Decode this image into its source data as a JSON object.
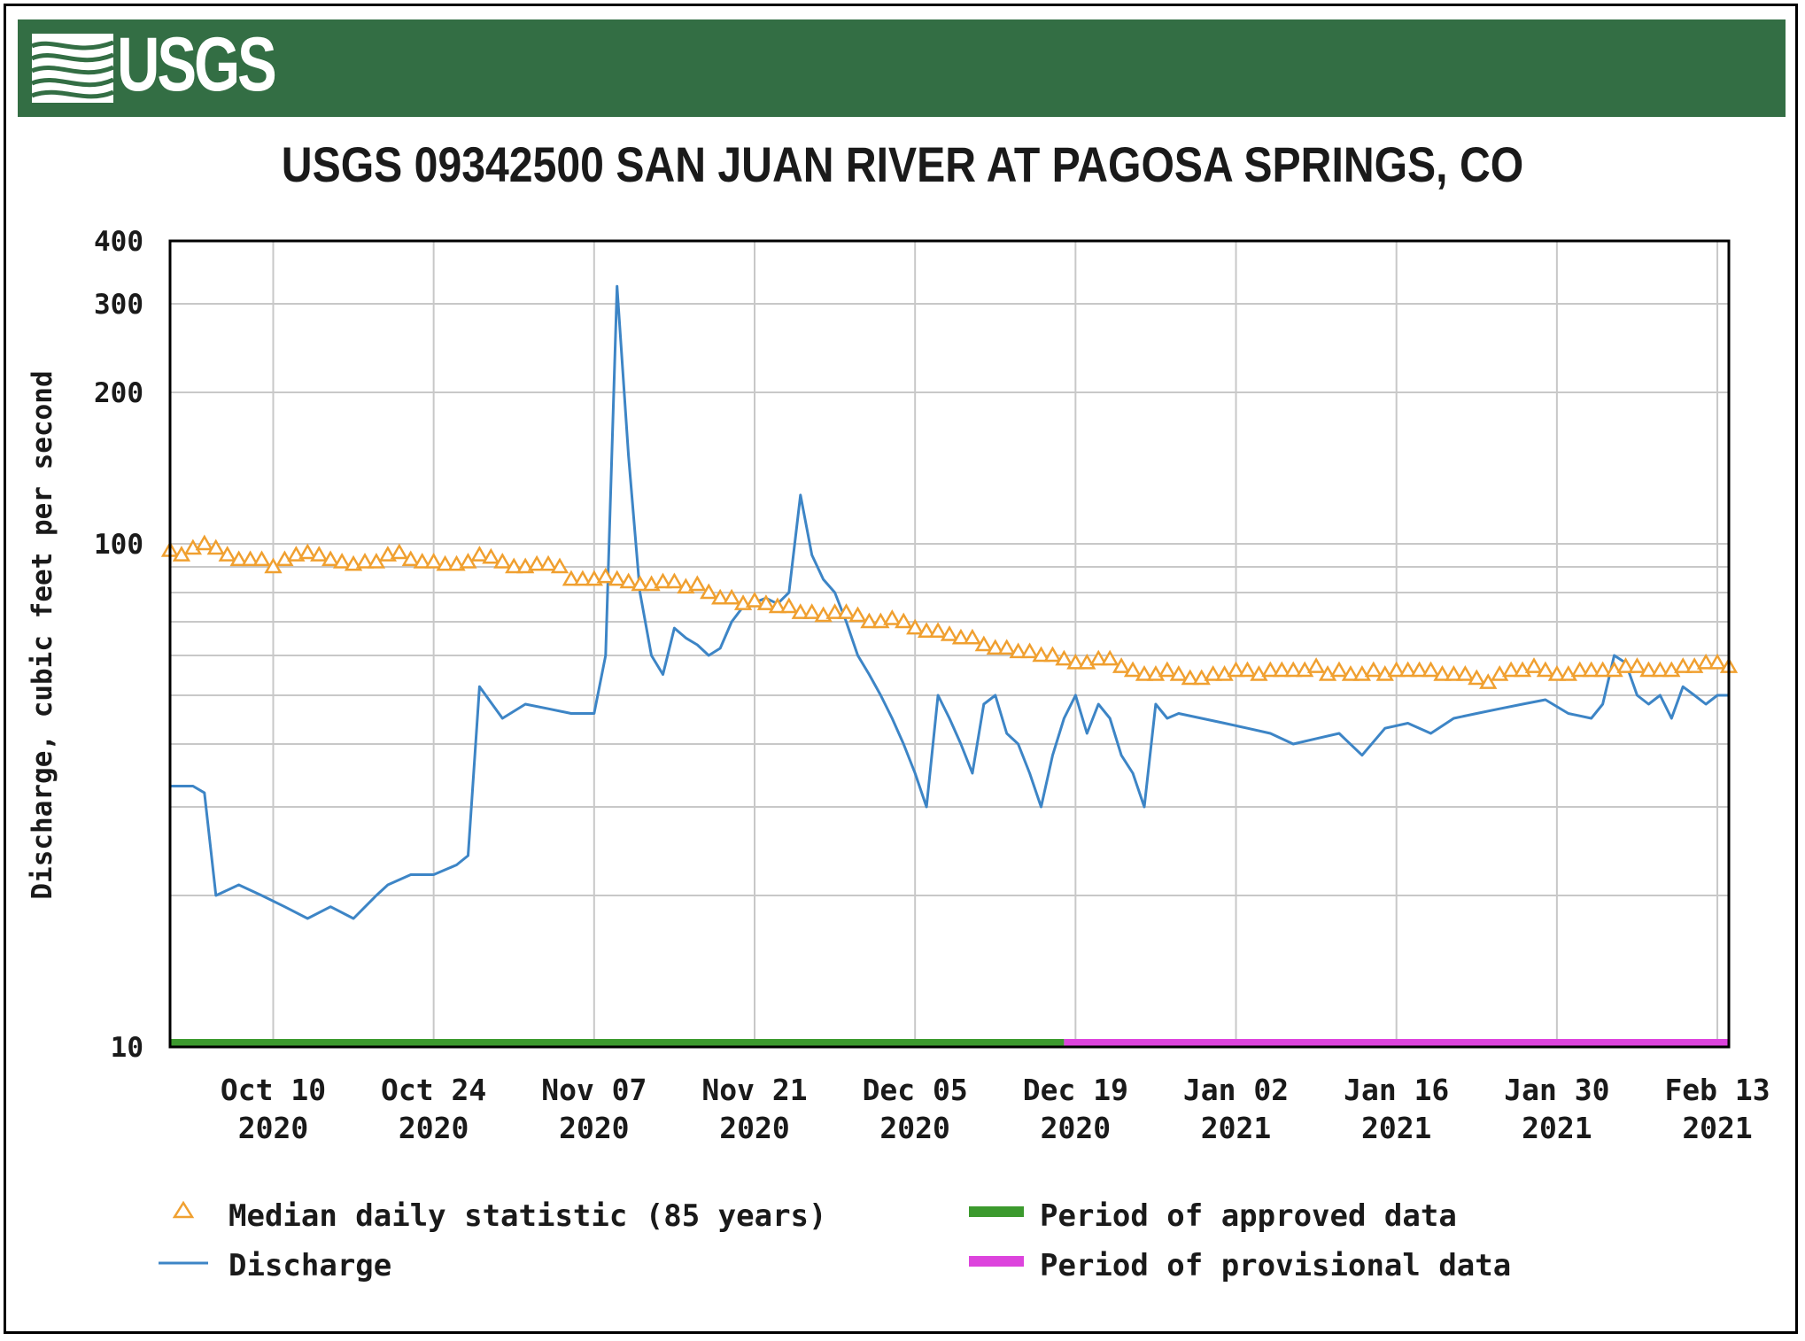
{
  "header": {
    "logo_text": "USGS"
  },
  "chart_data": {
    "type": "line",
    "title": "USGS 09342500 SAN JUAN RIVER AT PAGOSA SPRINGS, CO",
    "ylabel": "Discharge, cubic feet per second",
    "xlabel": "",
    "yscale": "log",
    "ylim": [
      10,
      400
    ],
    "xlim": [
      "2020-10-01",
      "2021-02-14"
    ],
    "grid": true,
    "y_ticks": [
      {
        "value": 10,
        "label": "10"
      },
      {
        "value": 100,
        "label": "100"
      },
      {
        "value": 200,
        "label": "200"
      },
      {
        "value": 300,
        "label": "300"
      },
      {
        "value": 400,
        "label": "400"
      }
    ],
    "x_ticks": [
      {
        "date": "2020-10-10",
        "line1": "Oct 10",
        "line2": "2020"
      },
      {
        "date": "2020-10-24",
        "line1": "Oct 24",
        "line2": "2020"
      },
      {
        "date": "2020-11-07",
        "line1": "Nov 07",
        "line2": "2020"
      },
      {
        "date": "2020-11-21",
        "line1": "Nov 21",
        "line2": "2020"
      },
      {
        "date": "2020-12-05",
        "line1": "Dec 05",
        "line2": "2020"
      },
      {
        "date": "2020-12-19",
        "line1": "Dec 19",
        "line2": "2020"
      },
      {
        "date": "2021-01-02",
        "line1": "Jan 02",
        "line2": "2021"
      },
      {
        "date": "2021-01-16",
        "line1": "Jan 16",
        "line2": "2021"
      },
      {
        "date": "2021-01-30",
        "line1": "Jan 30",
        "line2": "2021"
      },
      {
        "date": "2021-02-13",
        "line1": "Feb 13",
        "line2": "2021"
      }
    ],
    "series": [
      {
        "name": "Discharge",
        "color": "#3d85c6",
        "style": "line",
        "x": [
          "2020-10-01",
          "2020-10-03",
          "2020-10-04",
          "2020-10-05",
          "2020-10-07",
          "2020-10-09",
          "2020-10-11",
          "2020-10-13",
          "2020-10-15",
          "2020-10-17",
          "2020-10-19",
          "2020-10-20",
          "2020-10-22",
          "2020-10-24",
          "2020-10-26",
          "2020-10-27",
          "2020-10-28",
          "2020-10-30",
          "2020-11-01",
          "2020-11-03",
          "2020-11-05",
          "2020-11-07",
          "2020-11-08",
          "2020-11-09",
          "2020-11-10",
          "2020-11-11",
          "2020-11-12",
          "2020-11-13",
          "2020-11-14",
          "2020-11-15",
          "2020-11-16",
          "2020-11-17",
          "2020-11-18",
          "2020-11-19",
          "2020-11-20",
          "2020-11-22",
          "2020-11-23",
          "2020-11-24",
          "2020-11-25",
          "2020-11-26",
          "2020-11-27",
          "2020-11-28",
          "2020-11-29",
          "2020-11-30",
          "2020-12-01",
          "2020-12-02",
          "2020-12-03",
          "2020-12-04",
          "2020-12-05",
          "2020-12-06",
          "2020-12-07",
          "2020-12-08",
          "2020-12-09",
          "2020-12-10",
          "2020-12-11",
          "2020-12-12",
          "2020-12-13",
          "2020-12-14",
          "2020-12-15",
          "2020-12-16",
          "2020-12-17",
          "2020-12-18",
          "2020-12-19",
          "2020-12-20",
          "2020-12-21",
          "2020-12-22",
          "2020-12-23",
          "2020-12-24",
          "2020-12-25",
          "2020-12-26",
          "2020-12-27",
          "2020-12-28",
          "2020-12-30",
          "2021-01-01",
          "2021-01-03",
          "2021-01-05",
          "2021-01-07",
          "2021-01-09",
          "2021-01-11",
          "2021-01-13",
          "2021-01-15",
          "2021-01-17",
          "2021-01-19",
          "2021-01-21",
          "2021-01-23",
          "2021-01-25",
          "2021-01-27",
          "2021-01-29",
          "2021-01-31",
          "2021-02-02",
          "2021-02-03",
          "2021-02-04",
          "2021-02-05",
          "2021-02-06",
          "2021-02-07",
          "2021-02-08",
          "2021-02-09",
          "2021-02-10",
          "2021-02-11",
          "2021-02-12",
          "2021-02-13",
          "2021-02-14"
        ],
        "values": [
          33,
          33,
          32,
          20,
          21,
          20,
          19,
          18,
          19,
          18,
          20,
          21,
          22,
          22,
          23,
          24,
          52,
          45,
          48,
          47,
          46,
          46,
          60,
          325,
          150,
          80,
          60,
          55,
          68,
          65,
          63,
          60,
          62,
          70,
          75,
          78,
          76,
          80,
          125,
          95,
          85,
          80,
          70,
          60,
          55,
          50,
          45,
          40,
          35,
          30,
          50,
          45,
          40,
          35,
          48,
          50,
          42,
          40,
          35,
          30,
          38,
          45,
          50,
          42,
          48,
          45,
          38,
          35,
          30,
          48,
          45,
          46,
          45,
          44,
          43,
          42,
          40,
          41,
          42,
          38,
          43,
          44,
          42,
          45,
          46,
          47,
          48,
          49,
          46,
          45,
          48,
          60,
          58,
          50,
          48,
          50,
          45,
          52,
          50,
          48,
          50,
          50
        ]
      },
      {
        "name": "Median daily statistic (85 years)",
        "color": "#f0a030",
        "style": "triangles",
        "x": [
          "2020-10-01",
          "2020-10-02",
          "2020-10-03",
          "2020-10-04",
          "2020-10-05",
          "2020-10-06",
          "2020-10-07",
          "2020-10-08",
          "2020-10-09",
          "2020-10-10",
          "2020-10-11",
          "2020-10-12",
          "2020-10-13",
          "2020-10-14",
          "2020-10-15",
          "2020-10-16",
          "2020-10-17",
          "2020-10-18",
          "2020-10-19",
          "2020-10-20",
          "2020-10-21",
          "2020-10-22",
          "2020-10-23",
          "2020-10-24",
          "2020-10-25",
          "2020-10-26",
          "2020-10-27",
          "2020-10-28",
          "2020-10-29",
          "2020-10-30",
          "2020-10-31",
          "2020-11-01",
          "2020-11-02",
          "2020-11-03",
          "2020-11-04",
          "2020-11-05",
          "2020-11-06",
          "2020-11-07",
          "2020-11-08",
          "2020-11-09",
          "2020-11-10",
          "2020-11-11",
          "2020-11-12",
          "2020-11-13",
          "2020-11-14",
          "2020-11-15",
          "2020-11-16",
          "2020-11-17",
          "2020-11-18",
          "2020-11-19",
          "2020-11-20",
          "2020-11-21",
          "2020-11-22",
          "2020-11-23",
          "2020-11-24",
          "2020-11-25",
          "2020-11-26",
          "2020-11-27",
          "2020-11-28",
          "2020-11-29",
          "2020-11-30",
          "2020-12-01",
          "2020-12-02",
          "2020-12-03",
          "2020-12-04",
          "2020-12-05",
          "2020-12-06",
          "2020-12-07",
          "2020-12-08",
          "2020-12-09",
          "2020-12-10",
          "2020-12-11",
          "2020-12-12",
          "2020-12-13",
          "2020-12-14",
          "2020-12-15",
          "2020-12-16",
          "2020-12-17",
          "2020-12-18",
          "2020-12-19",
          "2020-12-20",
          "2020-12-21",
          "2020-12-22",
          "2020-12-23",
          "2020-12-24",
          "2020-12-25",
          "2020-12-26",
          "2020-12-27",
          "2020-12-28",
          "2020-12-29",
          "2020-12-30",
          "2020-12-31",
          "2021-01-01",
          "2021-01-02",
          "2021-01-03",
          "2021-01-04",
          "2021-01-05",
          "2021-01-06",
          "2021-01-07",
          "2021-01-08",
          "2021-01-09",
          "2021-01-10",
          "2021-01-11",
          "2021-01-12",
          "2021-01-13",
          "2021-01-14",
          "2021-01-15",
          "2021-01-16",
          "2021-01-17",
          "2021-01-18",
          "2021-01-19",
          "2021-01-20",
          "2021-01-21",
          "2021-01-22",
          "2021-01-23",
          "2021-01-24",
          "2021-01-25",
          "2021-01-26",
          "2021-01-27",
          "2021-01-28",
          "2021-01-29",
          "2021-01-30",
          "2021-01-31",
          "2021-02-01",
          "2021-02-02",
          "2021-02-03",
          "2021-02-04",
          "2021-02-05",
          "2021-02-06",
          "2021-02-07",
          "2021-02-08",
          "2021-02-09",
          "2021-02-10",
          "2021-02-11",
          "2021-02-12",
          "2021-02-13",
          "2021-02-14"
        ],
        "values": [
          97,
          95,
          98,
          100,
          98,
          95,
          93,
          93,
          93,
          90,
          93,
          95,
          96,
          95,
          93,
          92,
          91,
          92,
          92,
          95,
          96,
          93,
          92,
          92,
          91,
          91,
          92,
          95,
          94,
          92,
          90,
          90,
          91,
          91,
          90,
          85,
          85,
          85,
          86,
          85,
          84,
          83,
          83,
          84,
          84,
          82,
          83,
          80,
          78,
          78,
          76,
          77,
          76,
          75,
          75,
          73,
          73,
          72,
          73,
          73,
          72,
          70,
          70,
          71,
          70,
          68,
          67,
          67,
          66,
          65,
          65,
          63,
          62,
          62,
          61,
          61,
          60,
          60,
          59,
          58,
          58,
          59,
          59,
          57,
          56,
          55,
          55,
          56,
          55,
          54,
          54,
          55,
          55,
          56,
          56,
          55,
          56,
          56,
          56,
          56,
          57,
          55,
          56,
          55,
          55,
          56,
          55,
          56,
          56,
          56,
          56,
          55,
          55,
          55,
          54,
          53,
          55,
          56,
          56,
          57,
          56,
          55,
          55,
          56,
          56,
          56,
          56,
          57,
          57,
          56,
          56,
          56,
          57,
          57,
          58,
          58,
          57
        ]
      }
    ],
    "periods": [
      {
        "name": "Period of approved data",
        "color": "#3c9a2e",
        "from": "2020-10-01",
        "to": "2020-12-18"
      },
      {
        "name": "Period of provisional data",
        "color": "#dd44dd",
        "from": "2020-12-18",
        "to": "2021-02-14"
      }
    ],
    "legend": {
      "position": "bottom",
      "items": [
        {
          "label": "Median daily statistic (85 years)",
          "marker": "triangle",
          "color": "#f0a030"
        },
        {
          "label": "Period of approved data",
          "marker": "bar",
          "color": "#3c9a2e"
        },
        {
          "label": "Discharge",
          "marker": "line",
          "color": "#3d85c6"
        },
        {
          "label": "Period of provisional data",
          "marker": "bar",
          "color": "#dd44dd"
        }
      ]
    }
  }
}
